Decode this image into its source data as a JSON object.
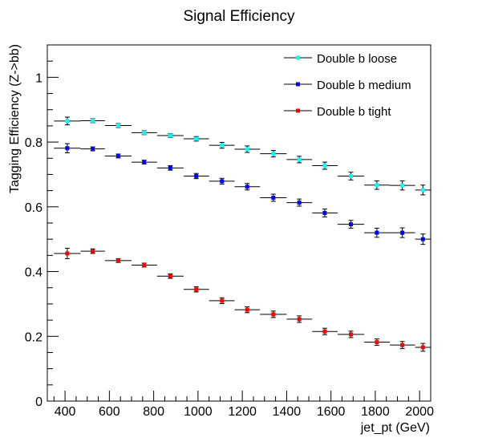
{
  "chart_data": {
    "type": "scatter",
    "title": "Signal Efficiency",
    "xlabel": "jet_pt (GeV)",
    "ylabel": "Tagging Efficiency (Z->bb)",
    "xlim": [
      320,
      2050
    ],
    "ylim": [
      0,
      1.1
    ],
    "x_ticks": [
      "400",
      "600",
      "800",
      "1000",
      "1200",
      "1400",
      "1600",
      "1800",
      "2000"
    ],
    "y_ticks": [
      "0",
      "0.2",
      "0.4",
      "0.6",
      "0.8",
      "1"
    ],
    "legend_position": "top-right",
    "bin_edges": [
      350,
      470,
      580,
      700,
      815,
      935,
      1050,
      1165,
      1280,
      1400,
      1515,
      1630,
      1750,
      1865,
      1980,
      2050
    ],
    "x": [
      410,
      525,
      640,
      757,
      875,
      992,
      1108,
      1222,
      1340,
      1457,
      1572,
      1690,
      1807,
      1922,
      2015
    ],
    "series": [
      {
        "name": "Double b loose",
        "color": "#00ffff",
        "values": [
          0.865,
          0.866,
          0.851,
          0.829,
          0.82,
          0.81,
          0.79,
          0.778,
          0.764,
          0.746,
          0.727,
          0.695,
          0.667,
          0.666,
          0.652
        ],
        "errors": [
          0.012,
          0.006,
          0.006,
          0.006,
          0.006,
          0.007,
          0.009,
          0.01,
          0.01,
          0.01,
          0.011,
          0.012,
          0.013,
          0.014,
          0.015
        ]
      },
      {
        "name": "Double b medium",
        "color": "#0000ff",
        "values": [
          0.781,
          0.779,
          0.757,
          0.738,
          0.72,
          0.695,
          0.679,
          0.662,
          0.628,
          0.613,
          0.581,
          0.546,
          0.52,
          0.52,
          0.5
        ],
        "errors": [
          0.014,
          0.006,
          0.006,
          0.006,
          0.007,
          0.008,
          0.009,
          0.01,
          0.011,
          0.011,
          0.012,
          0.012,
          0.014,
          0.015,
          0.016
        ]
      },
      {
        "name": "Double b tight",
        "color": "#ff0000",
        "values": [
          0.456,
          0.463,
          0.434,
          0.42,
          0.386,
          0.345,
          0.31,
          0.282,
          0.268,
          0.253,
          0.215,
          0.206,
          0.182,
          0.173,
          0.166
        ],
        "errors": [
          0.016,
          0.007,
          0.006,
          0.006,
          0.007,
          0.008,
          0.009,
          0.009,
          0.01,
          0.01,
          0.01,
          0.01,
          0.01,
          0.011,
          0.012
        ]
      }
    ]
  }
}
